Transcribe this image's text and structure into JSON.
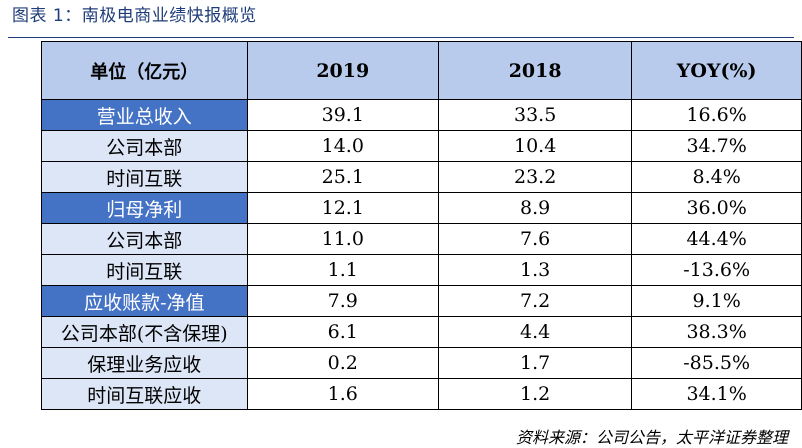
{
  "title": "图表 1：南极电商业绩快报概览",
  "table": {
    "headers": [
      "单位（亿元）",
      "2019",
      "2018",
      "YOY(%)"
    ],
    "rows": [
      {
        "label": "营业总收入",
        "main": true,
        "v2019": "39.1",
        "v2018": "33.5",
        "yoy": "16.6%"
      },
      {
        "label": "公司本部",
        "main": false,
        "v2019": "14.0",
        "v2018": "10.4",
        "yoy": "34.7%"
      },
      {
        "label": "时间互联",
        "main": false,
        "v2019": "25.1",
        "v2018": "23.2",
        "yoy": "8.4%"
      },
      {
        "label": "归母净利",
        "main": true,
        "v2019": "12.1",
        "v2018": "8.9",
        "yoy": "36.0%"
      },
      {
        "label": "公司本部",
        "main": false,
        "v2019": "11.0",
        "v2018": "7.6",
        "yoy": "44.4%"
      },
      {
        "label": "时间互联",
        "main": false,
        "v2019": "1.1",
        "v2018": "1.3",
        "yoy": "-13.6%"
      },
      {
        "label": "应收账款-净值",
        "main": true,
        "v2019": "7.9",
        "v2018": "7.2",
        "yoy": "9.1%"
      },
      {
        "label": "公司本部(不含保理)",
        "main": false,
        "v2019": "6.1",
        "v2018": "4.4",
        "yoy": "38.3%"
      },
      {
        "label": "保理业务应收",
        "main": false,
        "v2019": "0.2",
        "v2018": "1.7",
        "yoy": "-85.5%"
      },
      {
        "label": "时间互联应收",
        "main": false,
        "v2019": "1.6",
        "v2018": "1.2",
        "yoy": "34.1%"
      }
    ]
  },
  "source": "资料来源：公司公告，太平洋证券整理",
  "colors": {
    "title": "#1f3d7a",
    "header_bg": "#b9cbec",
    "main_label_bg": "#4472c4",
    "sub_label_bg": "#dce6f6"
  }
}
